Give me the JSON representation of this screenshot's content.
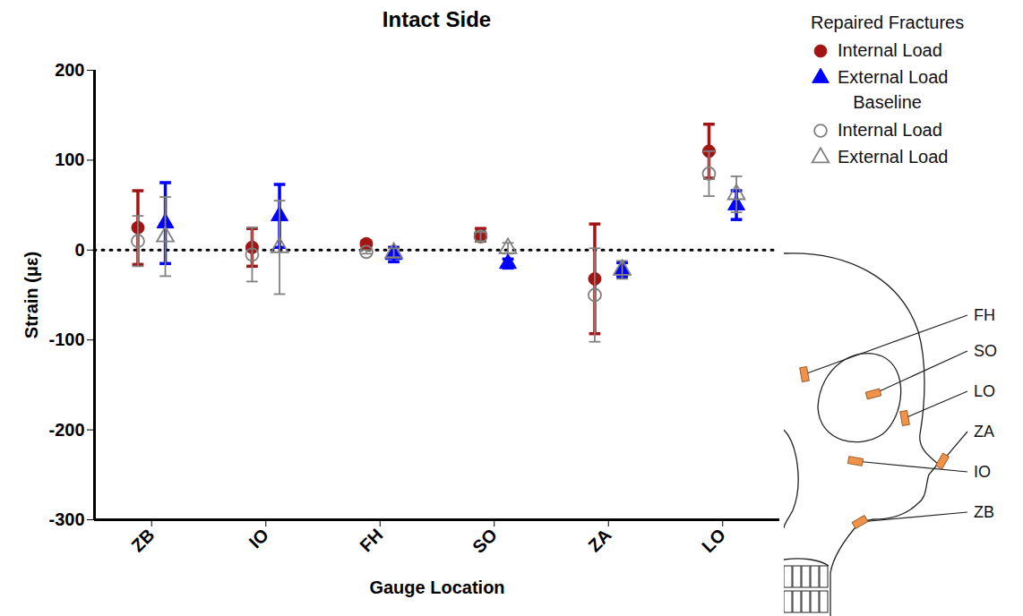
{
  "chart_data": {
    "type": "scatter",
    "title": "Intact Side",
    "x_label": "Gauge Location",
    "y_label": "Strain (με)",
    "categories": [
      "ZB",
      "IO",
      "FH",
      "SO",
      "ZA",
      "LO"
    ],
    "ylim": [
      -300,
      200
    ],
    "yticks": [
      -300,
      -200,
      -100,
      0,
      100,
      200
    ],
    "grid": false,
    "legend": "top-right",
    "series": [
      {
        "group": "Repaired Fractures",
        "name": "Internal Load",
        "color": "#a31515",
        "marker": "circle",
        "values": [
          25,
          3,
          7,
          17,
          -32,
          110
        ],
        "errors": [
          41,
          21,
          3,
          7,
          61,
          30
        ]
      },
      {
        "group": "Repaired Fractures",
        "name": "External Load",
        "color": "#0000ff",
        "marker": "triangle",
        "values": [
          30,
          38,
          -5,
          -15,
          -22,
          50
        ],
        "errors": [
          45,
          35,
          8,
          5,
          8,
          16
        ]
      },
      {
        "group": "Baseline",
        "name": "Internal Load",
        "color": "#808080",
        "marker": "circle-open",
        "values": [
          10,
          -5,
          -2,
          15,
          -50,
          85
        ],
        "errors": [
          28,
          30,
          2,
          5,
          52,
          25
        ]
      },
      {
        "group": "Baseline",
        "name": "External Load",
        "color": "#808080",
        "marker": "triangle-open",
        "values": [
          15,
          3,
          -3,
          2,
          -22,
          62
        ],
        "errors": [
          44,
          52,
          5,
          6,
          10,
          20
        ]
      }
    ]
  }
}
